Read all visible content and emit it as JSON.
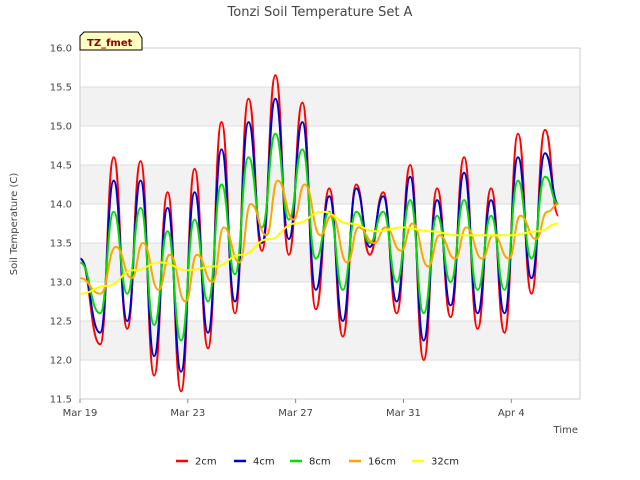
{
  "chart_data": {
    "type": "line",
    "title": "Tonzi Soil Temperature Set A",
    "xlabel": "Time",
    "ylabel": "Soil Temperature (C)",
    "annotation": "TZ_fmet",
    "ylim": [
      11.5,
      16.0
    ],
    "yticks": [
      "11.5",
      "12.0",
      "12.5",
      "13.0",
      "13.5",
      "14.0",
      "14.5",
      "15.0",
      "15.5",
      "16.0"
    ],
    "xlim": [
      0,
      18
    ],
    "xticks": [
      {
        "day": 0,
        "label": "Mar 19"
      },
      {
        "day": 5,
        "label": "Mar 23"
      },
      {
        "day": 10,
        "label": "Mar 27"
      },
      {
        "day": 15,
        "label": "Mar 31"
      },
      {
        "day": 20,
        "label": "Apr 4"
      }
    ],
    "x_is_date_offset_days": false,
    "legend_position": "bottom-center",
    "grid": true,
    "series": [
      {
        "name": "2cm",
        "color": "#ff0000",
        "x": [
          "Mar 19 00:00",
          "Mar 19 18:00",
          "Mar 20 06:00",
          "Mar 20 18:00",
          "Mar 21 06:00",
          "Mar 21 18:00",
          "Mar 22 06:00",
          "Mar 22 18:00",
          "Mar 23 06:00",
          "Mar 23 18:00",
          "Mar 24 06:00",
          "Mar 24 18:00",
          "Mar 25 06:00",
          "Mar 25 18:00",
          "Mar 26 06:00",
          "Mar 26 18:00",
          "Mar 27 06:00",
          "Mar 27 18:00",
          "Mar 28 06:00",
          "Mar 28 18:00",
          "Mar 29 06:00",
          "Mar 29 18:00",
          "Mar 30 06:00",
          "Mar 30 18:00",
          "Mar 31 06:00",
          "Mar 31 18:00",
          "Apr 1 06:00",
          "Apr 1 18:00",
          "Apr 2 06:00",
          "Apr 2 18:00",
          "Apr 3 06:00",
          "Apr 3 18:00",
          "Apr 4 06:00",
          "Apr 4 18:00",
          "Apr 5 06:00",
          "Apr 5 18:00"
        ],
        "y": [
          13.3,
          12.2,
          14.6,
          12.4,
          14.55,
          11.8,
          14.15,
          11.6,
          14.45,
          12.15,
          15.05,
          12.6,
          15.35,
          13.4,
          15.65,
          13.35,
          15.3,
          12.65,
          14.2,
          12.3,
          14.25,
          13.35,
          14.15,
          12.6,
          14.5,
          12.0,
          14.2,
          12.55,
          14.6,
          12.4,
          14.2,
          12.35,
          14.9,
          12.85,
          14.95,
          13.85
        ]
      },
      {
        "name": "4cm",
        "color": "#0000cc",
        "x": [
          "Mar 19 00:00",
          "Mar 19 18:00",
          "Mar 20 06:00",
          "Mar 20 18:00",
          "Mar 21 06:00",
          "Mar 21 18:00",
          "Mar 22 06:00",
          "Mar 22 18:00",
          "Mar 23 06:00",
          "Mar 23 18:00",
          "Mar 24 06:00",
          "Mar 24 18:00",
          "Mar 25 06:00",
          "Mar 25 18:00",
          "Mar 26 06:00",
          "Mar 26 18:00",
          "Mar 27 06:00",
          "Mar 27 18:00",
          "Mar 28 06:00",
          "Mar 28 18:00",
          "Mar 29 06:00",
          "Mar 29 18:00",
          "Mar 30 06:00",
          "Mar 30 18:00",
          "Mar 31 06:00",
          "Mar 31 18:00",
          "Apr 1 06:00",
          "Apr 1 18:00",
          "Apr 2 06:00",
          "Apr 2 18:00",
          "Apr 3 06:00",
          "Apr 3 18:00",
          "Apr 4 06:00",
          "Apr 4 18:00",
          "Apr 5 06:00",
          "Apr 5 18:00"
        ],
        "y": [
          13.3,
          12.35,
          14.3,
          12.5,
          14.3,
          12.05,
          13.95,
          11.85,
          14.15,
          12.35,
          14.7,
          12.75,
          15.05,
          13.5,
          15.35,
          13.55,
          15.05,
          12.9,
          14.1,
          12.5,
          14.2,
          13.45,
          14.1,
          12.75,
          14.35,
          12.25,
          14.05,
          12.7,
          14.4,
          12.6,
          14.05,
          12.6,
          14.6,
          13.05,
          14.65,
          14.0
        ]
      },
      {
        "name": "8cm",
        "color": "#00dd00",
        "x": [
          "Mar 19 00:00",
          "Mar 19 18:00",
          "Mar 20 06:00",
          "Mar 20 18:00",
          "Mar 21 06:00",
          "Mar 21 18:00",
          "Mar 22 06:00",
          "Mar 22 18:00",
          "Mar 23 06:00",
          "Mar 23 18:00",
          "Mar 24 06:00",
          "Mar 24 18:00",
          "Mar 25 06:00",
          "Mar 25 18:00",
          "Mar 26 06:00",
          "Mar 26 18:00",
          "Mar 27 06:00",
          "Mar 27 18:00",
          "Mar 28 06:00",
          "Mar 28 18:00",
          "Mar 29 06:00",
          "Mar 29 18:00",
          "Mar 30 06:00",
          "Mar 30 18:00",
          "Mar 31 06:00",
          "Mar 31 18:00",
          "Apr 1 06:00",
          "Apr 1 18:00",
          "Apr 2 06:00",
          "Apr 2 18:00",
          "Apr 3 06:00",
          "Apr 3 18:00",
          "Apr 4 06:00",
          "Apr 4 18:00",
          "Apr 5 06:00",
          "Apr 5 18:00"
        ],
        "y": [
          13.25,
          12.6,
          13.9,
          12.85,
          13.95,
          12.45,
          13.65,
          12.25,
          13.8,
          12.75,
          14.25,
          13.1,
          14.6,
          13.7,
          14.9,
          13.8,
          14.7,
          13.3,
          13.9,
          12.9,
          13.9,
          13.5,
          13.9,
          13.0,
          14.05,
          12.6,
          13.85,
          13.0,
          14.05,
          12.9,
          13.85,
          12.9,
          14.3,
          13.3,
          14.35,
          14.0
        ]
      },
      {
        "name": "16cm",
        "color": "#ffa500",
        "x": [
          "Mar 19 00:00",
          "Mar 19 18:00",
          "Mar 20 08:00",
          "Mar 20 22:00",
          "Mar 21 08:00",
          "Mar 21 22:00",
          "Mar 22 08:00",
          "Mar 22 22:00",
          "Mar 23 08:00",
          "Mar 23 22:00",
          "Mar 24 08:00",
          "Mar 24 22:00",
          "Mar 25 08:00",
          "Mar 25 22:00",
          "Mar 26 08:00",
          "Mar 26 22:00",
          "Mar 27 08:00",
          "Mar 27 22:00",
          "Mar 28 08:00",
          "Mar 28 22:00",
          "Mar 29 08:00",
          "Mar 29 22:00",
          "Mar 30 08:00",
          "Mar 30 22:00",
          "Mar 31 08:00",
          "Mar 31 22:00",
          "Apr 1 08:00",
          "Apr 1 22:00",
          "Apr 2 08:00",
          "Apr 2 22:00",
          "Apr 3 08:00",
          "Apr 3 22:00",
          "Apr 4 08:00",
          "Apr 4 22:00",
          "Apr 5 08:00",
          "Apr 5 18:00"
        ],
        "y": [
          13.05,
          12.85,
          13.45,
          13.05,
          13.5,
          12.9,
          13.35,
          12.75,
          13.35,
          13.0,
          13.7,
          13.25,
          14.0,
          13.6,
          14.3,
          13.8,
          14.25,
          13.6,
          13.85,
          13.25,
          13.7,
          13.5,
          13.7,
          13.4,
          13.75,
          13.2,
          13.6,
          13.3,
          13.7,
          13.3,
          13.6,
          13.3,
          13.85,
          13.55,
          13.9,
          14.0
        ]
      },
      {
        "name": "32cm",
        "color": "#ffff00",
        "x": [
          "Mar 19 00:00",
          "Mar 20 00:00",
          "Mar 21 00:00",
          "Mar 22 00:00",
          "Mar 23 00:00",
          "Mar 24 00:00",
          "Mar 25 00:00",
          "Mar 26 00:00",
          "Mar 27 00:00",
          "Mar 28 00:00",
          "Mar 29 00:00",
          "Mar 30 00:00",
          "Mar 31 00:00",
          "Apr 1 00:00",
          "Apr 2 00:00",
          "Apr 3 00:00",
          "Apr 4 00:00",
          "Apr 5 00:00",
          "Apr 5 18:00"
        ],
        "y": [
          12.85,
          12.95,
          13.15,
          13.25,
          13.15,
          13.2,
          13.35,
          13.55,
          13.75,
          13.9,
          13.75,
          13.65,
          13.7,
          13.65,
          13.6,
          13.6,
          13.6,
          13.65,
          13.75
        ]
      }
    ]
  }
}
